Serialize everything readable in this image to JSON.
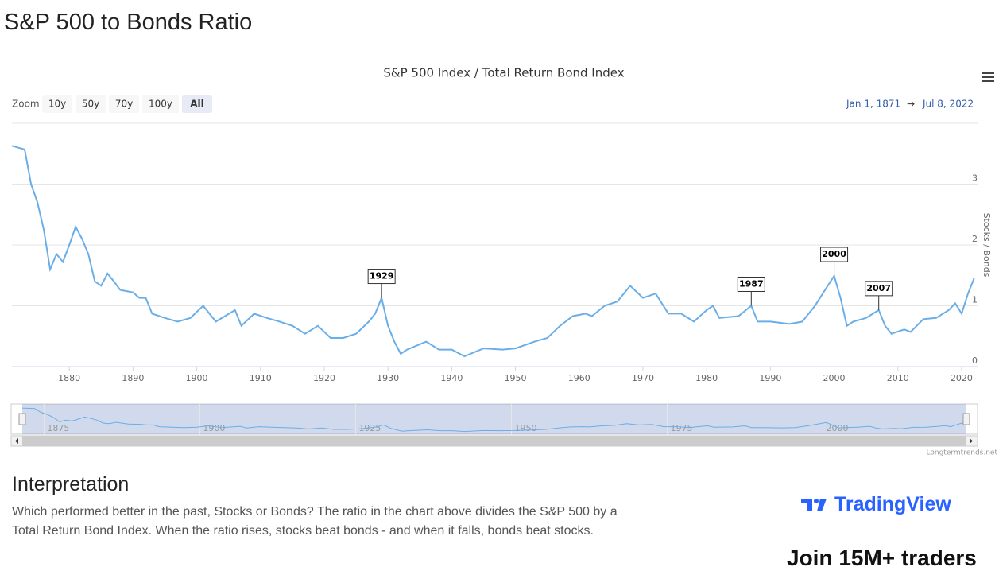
{
  "page_title": "S&P 500 to Bonds Ratio",
  "zoom": {
    "label": "Zoom",
    "buttons": [
      "10y",
      "50y",
      "70y",
      "100y",
      "All"
    ]
  },
  "range": {
    "from": "Jan 1, 1871",
    "arrow": "→",
    "to": "Jul 8, 2022"
  },
  "credit": "Longtermtrends.net",
  "section": {
    "heading": "Interpretation",
    "text": "Which performed better in the past, Stocks or Bonds? The ratio in the chart above divides the S&P 500 by a Total Return Bond Index. When the ratio rises, stocks beat bonds - and when it falls, bonds beat stocks."
  },
  "sidebar": {
    "brand": "TradingView",
    "cta": "Join 15M+ traders"
  },
  "chart_data": {
    "type": "line",
    "title": "S&P 500 Index / Total Return Bond Index",
    "y_label": "Stocks / Bonds",
    "x": [
      1871,
      1873,
      1874,
      1875,
      1876,
      1877,
      1878,
      1879,
      1880,
      1881,
      1882,
      1883,
      1884,
      1885,
      1886,
      1887,
      1888,
      1890,
      1891,
      1892,
      1893,
      1895,
      1897,
      1899,
      1901,
      1903,
      1906,
      1907,
      1909,
      1911,
      1913,
      1915,
      1917,
      1919,
      1921,
      1923,
      1925,
      1927,
      1928,
      1929,
      1930,
      1931,
      1932,
      1933,
      1936,
      1938,
      1940,
      1942,
      1945,
      1948,
      1950,
      1953,
      1955,
      1957,
      1959,
      1961,
      1962,
      1964,
      1966,
      1968,
      1970,
      1972,
      1974,
      1976,
      1978,
      1980,
      1981,
      1982,
      1985,
      1987,
      1988,
      1990,
      1993,
      1995,
      1997,
      1999,
      2000,
      2001,
      2002,
      2003,
      2005,
      2007,
      2008,
      2009,
      2011,
      2012,
      2014,
      2016,
      2018,
      2019,
      2020,
      2021,
      2022
    ],
    "series": [
      {
        "name": "Stocks / Bonds",
        "color": "#6aaee8",
        "values": [
          3.63,
          3.57,
          3.0,
          2.7,
          2.25,
          1.6,
          1.85,
          1.72,
          2.0,
          2.3,
          2.1,
          1.85,
          1.4,
          1.33,
          1.53,
          1.4,
          1.26,
          1.22,
          1.13,
          1.13,
          0.87,
          0.8,
          0.74,
          0.8,
          1.0,
          0.74,
          0.93,
          0.67,
          0.87,
          0.8,
          0.74,
          0.67,
          0.54,
          0.67,
          0.47,
          0.47,
          0.54,
          0.74,
          0.87,
          1.13,
          0.67,
          0.41,
          0.21,
          0.28,
          0.41,
          0.28,
          0.28,
          0.17,
          0.3,
          0.28,
          0.3,
          0.41,
          0.47,
          0.67,
          0.83,
          0.87,
          0.83,
          1.0,
          1.07,
          1.33,
          1.13,
          1.2,
          0.87,
          0.87,
          0.74,
          0.93,
          1.0,
          0.8,
          0.83,
          1.0,
          0.74,
          0.74,
          0.7,
          0.74,
          1.0,
          1.33,
          1.49,
          1.13,
          0.67,
          0.74,
          0.8,
          0.93,
          0.67,
          0.54,
          0.61,
          0.57,
          0.78,
          0.8,
          0.93,
          1.04,
          0.87,
          1.2,
          1.46
        ]
      }
    ],
    "xlim": [
      1871,
      2022.5
    ],
    "ylim": [
      0,
      4
    ],
    "xticks": [
      1880,
      1890,
      1900,
      1910,
      1920,
      1930,
      1940,
      1950,
      1960,
      1970,
      1980,
      1990,
      2000,
      2010,
      2020
    ],
    "yticks": [
      0,
      1,
      2,
      3
    ],
    "annotations": [
      1929,
      1987,
      2000,
      2007
    ],
    "navigator_xticks": [
      1875,
      1900,
      1925,
      1950,
      1975,
      2000
    ],
    "grid": true
  }
}
